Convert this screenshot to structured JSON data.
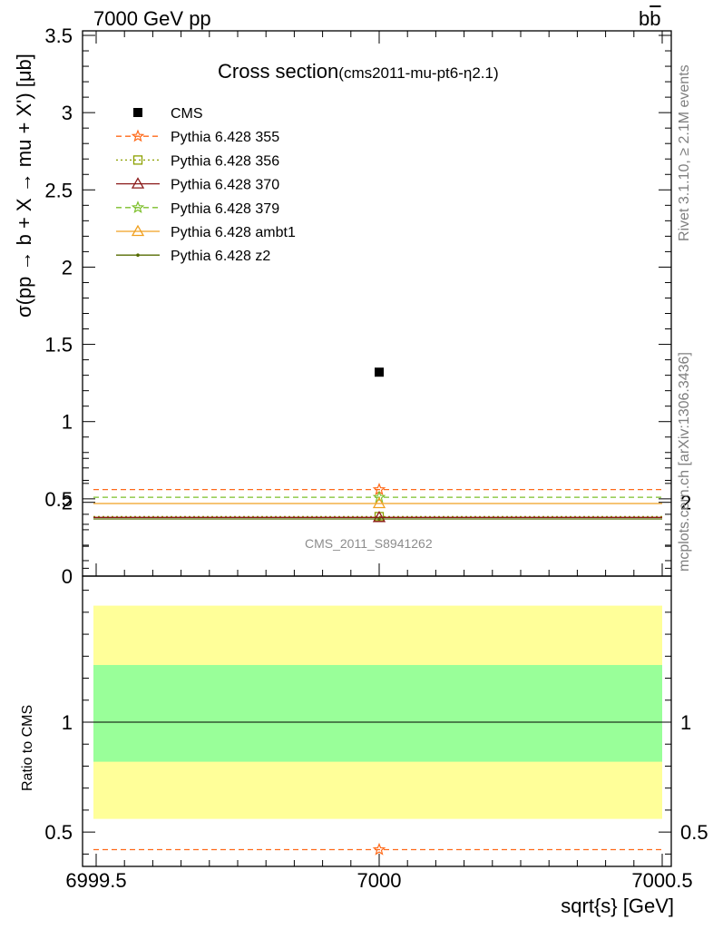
{
  "header": {
    "left": "7000 GeV pp",
    "right_main": "b",
    "right_bar": "b"
  },
  "title": {
    "main": "Cross section",
    "sub": "(cms2011-mu-pt6-η2.1)"
  },
  "side": {
    "rivet": "Rivet 3.1.10, ≥ 2.1M events",
    "mcplots": "mcplots.cern.ch [arXiv:1306.3436]"
  },
  "analysis_id": "CMS_2011_S8941262",
  "chart_data": [
    {
      "type": "scatter",
      "ylabel": "σ(pp → b + X → mu + X') [μb]",
      "xlim": [
        6999.5,
        7000.5
      ],
      "ylim": [
        0,
        3.5
      ],
      "yticks": [
        "0",
        "0.5",
        "1",
        "1.5",
        "2",
        "2.5",
        "3",
        "3.5"
      ],
      "legend_position": "top-left",
      "series": [
        {
          "name": "CMS",
          "color": "#000000",
          "marker": "square",
          "x": [
            7000
          ],
          "y": [
            1.32
          ]
        },
        {
          "name": "Pythia 6.428 355",
          "color": "#ff6a1a",
          "marker": "star",
          "dash": "dashed",
          "x": [
            7000
          ],
          "y": [
            0.56
          ]
        },
        {
          "name": "Pythia 6.428 356",
          "color": "#8ca000",
          "marker": "open-square",
          "dash": "dotted",
          "x": [
            7000
          ],
          "y": [
            0.385
          ]
        },
        {
          "name": "Pythia 6.428 370",
          "color": "#8b1a1a",
          "marker": "open-triangle",
          "dash": "solid",
          "x": [
            7000
          ],
          "y": [
            0.38
          ]
        },
        {
          "name": "Pythia 6.428 379",
          "color": "#7cbf2a",
          "marker": "star",
          "dash": "dashed",
          "x": [
            7000
          ],
          "y": [
            0.51
          ]
        },
        {
          "name": "Pythia 6.428 ambt1",
          "color": "#f0a020",
          "marker": "open-triangle",
          "dash": "solid",
          "x": [
            7000
          ],
          "y": [
            0.47
          ]
        },
        {
          "name": "Pythia 6.428 z2",
          "color": "#556b00",
          "marker": "dot",
          "dash": "solid",
          "x": [
            7000
          ],
          "y": [
            0.37
          ]
        }
      ]
    },
    {
      "type": "line",
      "ylabel": "Ratio to CMS",
      "xlabel": "sqrt{s} [GeV]",
      "xlim": [
        6999.5,
        7000.5
      ],
      "ylim": [
        0.35,
        2.25
      ],
      "yticks": [
        "0.5",
        "1",
        "2"
      ],
      "xticks": [
        "6999.5",
        "7000",
        "7000.5"
      ],
      "bands": [
        {
          "name": "stat+syst",
          "color": "#ffff99",
          "low": 0.56,
          "high": 1.53
        },
        {
          "name": "stat",
          "color": "#99ff99",
          "low": 0.82,
          "high": 1.26
        }
      ],
      "reference": 1.0,
      "series": [
        {
          "name": "Pythia 6.428 355",
          "color": "#ff6a1a",
          "marker": "star",
          "dash": "dashed",
          "x": [
            7000
          ],
          "y": [
            0.42
          ]
        }
      ]
    }
  ]
}
